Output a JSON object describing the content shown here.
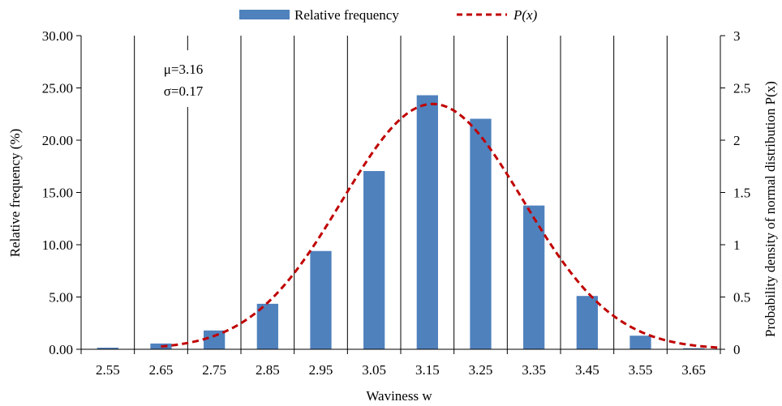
{
  "colors": {
    "bar": "#4f81bd",
    "curve": "#c00000",
    "grid": "#000000"
  },
  "legend": {
    "bar_label": "Relative frequency",
    "curve_label": "P(x)"
  },
  "annotation": {
    "mu": "μ=3.16",
    "sigma": "σ=0.17"
  },
  "chart_data": {
    "type": "bar",
    "title": "",
    "xlabel": "Waviness w",
    "ylabel": "Relative frequency (%)",
    "y2label": "Probability density  of normal distribution P(x)",
    "categories": [
      "2.55",
      "2.65",
      "2.75",
      "2.85",
      "2.95",
      "3.05",
      "3.15",
      "3.25",
      "3.35",
      "3.45",
      "3.55",
      "3.65"
    ],
    "ylim": [
      0,
      30
    ],
    "y_ticks": [
      "0.00",
      "5.00",
      "10.00",
      "15.00",
      "20.00",
      "25.00",
      "30.00"
    ],
    "y2lim": [
      0,
      3
    ],
    "y2_ticks": [
      "0",
      "0.5",
      "1",
      "1.5",
      "2",
      "2.5",
      "3"
    ],
    "grid": "vertical",
    "legend_position": "top",
    "series": [
      {
        "name": "Relative frequency",
        "type": "bar",
        "axis": "left",
        "values": [
          0.15,
          0.55,
          1.8,
          4.35,
          9.4,
          17.05,
          24.3,
          22.05,
          13.75,
          5.1,
          1.3,
          0.1
        ]
      },
      {
        "name": "P(x)",
        "type": "line",
        "axis": "right",
        "style": "dashed",
        "mu": 3.16,
        "sigma": 0.17,
        "x": [
          2.65,
          2.75,
          2.85,
          2.95,
          3.05,
          3.15,
          3.25,
          3.35,
          3.45,
          3.55,
          3.65,
          3.7
        ],
        "values": [
          0.024,
          0.128,
          0.445,
          1.093,
          1.901,
          2.341,
          2.038,
          1.256,
          0.544,
          0.165,
          0.037,
          0.013
        ]
      }
    ]
  }
}
